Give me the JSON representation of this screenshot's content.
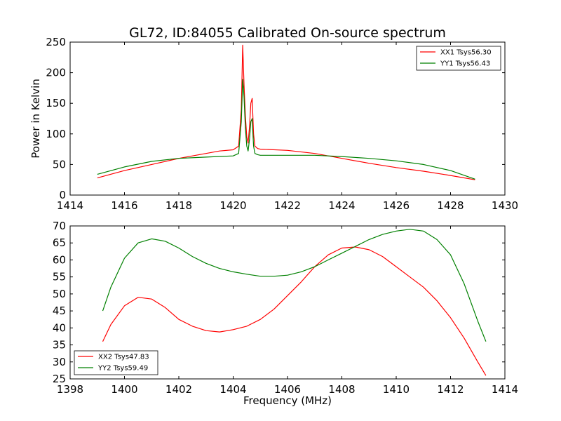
{
  "figure": {
    "title": "GL72, ID:84055 Calibrated On-source spectrum"
  },
  "chart_data": [
    {
      "type": "line",
      "title": "GL72, ID:84055 Calibrated On-source spectrum",
      "xlabel": "",
      "ylabel": "Power in Kelvin",
      "xlim": [
        1414,
        1430
      ],
      "ylim": [
        0,
        250
      ],
      "xticks": [
        1414,
        1416,
        1418,
        1420,
        1422,
        1424,
        1426,
        1428,
        1430
      ],
      "yticks": [
        0,
        50,
        100,
        150,
        200,
        250
      ],
      "grid": false,
      "legend_position": "upper right",
      "series": [
        {
          "name": "XX1 Tsys56.30",
          "color": "#ff0000",
          "x": [
            1415.0,
            1416.0,
            1417.0,
            1418.0,
            1419.0,
            1419.5,
            1420.0,
            1420.2,
            1420.3,
            1420.35,
            1420.4,
            1420.45,
            1420.5,
            1420.55,
            1420.6,
            1420.65,
            1420.7,
            1420.75,
            1420.8,
            1420.9,
            1421.0,
            1422.0,
            1423.0,
            1424.0,
            1425.0,
            1426.0,
            1427.0,
            1428.0,
            1428.9
          ],
          "y": [
            28,
            40,
            50,
            60,
            68,
            72,
            74,
            80,
            140,
            245,
            180,
            130,
            95,
            85,
            110,
            150,
            158,
            100,
            80,
            76,
            75,
            73,
            68,
            60,
            52,
            45,
            39,
            32,
            25
          ]
        },
        {
          "name": "YY1 Tsys56.43",
          "color": "#008000",
          "x": [
            1415.0,
            1416.0,
            1417.0,
            1418.0,
            1419.0,
            1420.0,
            1420.2,
            1420.3,
            1420.35,
            1420.4,
            1420.45,
            1420.5,
            1420.55,
            1420.6,
            1420.65,
            1420.7,
            1420.75,
            1420.8,
            1420.9,
            1421.0,
            1422.0,
            1423.0,
            1424.0,
            1425.0,
            1426.0,
            1427.0,
            1428.0,
            1428.9
          ],
          "y": [
            34,
            46,
            55,
            60,
            62,
            64,
            68,
            120,
            189,
            160,
            110,
            80,
            72,
            90,
            120,
            125,
            80,
            68,
            66,
            65,
            65,
            65,
            63,
            60,
            56,
            50,
            40,
            26
          ]
        }
      ]
    },
    {
      "type": "line",
      "title": "",
      "xlabel": "Frequency (MHz)",
      "ylabel": "",
      "xlim": [
        1398,
        1414
      ],
      "ylim": [
        25,
        70
      ],
      "xticks": [
        1398,
        1400,
        1402,
        1404,
        1406,
        1408,
        1410,
        1412,
        1414
      ],
      "yticks": [
        25,
        30,
        35,
        40,
        45,
        50,
        55,
        60,
        65,
        70
      ],
      "grid": false,
      "legend_position": "lower left",
      "series": [
        {
          "name": "XX2 Tsys47.83",
          "color": "#ff0000",
          "x": [
            1399.2,
            1399.5,
            1400.0,
            1400.5,
            1401.0,
            1401.5,
            1402.0,
            1402.5,
            1403.0,
            1403.5,
            1404.0,
            1404.5,
            1405.0,
            1405.5,
            1406.0,
            1406.5,
            1407.0,
            1407.5,
            1408.0,
            1408.5,
            1409.0,
            1409.5,
            1410.0,
            1410.5,
            1411.0,
            1411.5,
            1412.0,
            1412.5,
            1413.0,
            1413.3
          ],
          "y": [
            36,
            41,
            46.5,
            49,
            48.5,
            46,
            42.5,
            40.5,
            39.2,
            38.8,
            39.5,
            40.5,
            42.5,
            45.5,
            49.5,
            53.5,
            58,
            61.5,
            63.5,
            63.8,
            63,
            61,
            58,
            55,
            52,
            48,
            43,
            37,
            30,
            26
          ]
        },
        {
          "name": "YY2 Tsys59.49",
          "color": "#008000",
          "x": [
            1399.2,
            1399.5,
            1400.0,
            1400.5,
            1401.0,
            1401.5,
            1402.0,
            1402.5,
            1403.0,
            1403.5,
            1404.0,
            1404.5,
            1405.0,
            1405.5,
            1406.0,
            1406.5,
            1407.0,
            1407.5,
            1408.0,
            1408.5,
            1409.0,
            1409.5,
            1410.0,
            1410.5,
            1411.0,
            1411.5,
            1412.0,
            1412.5,
            1413.0,
            1413.3
          ],
          "y": [
            45,
            52,
            60.5,
            65,
            66.2,
            65.5,
            63.5,
            61,
            59,
            57.5,
            56.5,
            55.8,
            55.2,
            55.2,
            55.5,
            56.5,
            58,
            60,
            62,
            64,
            66,
            67.5,
            68.5,
            69,
            68.5,
            66,
            61.5,
            53,
            42,
            36
          ]
        }
      ]
    }
  ]
}
